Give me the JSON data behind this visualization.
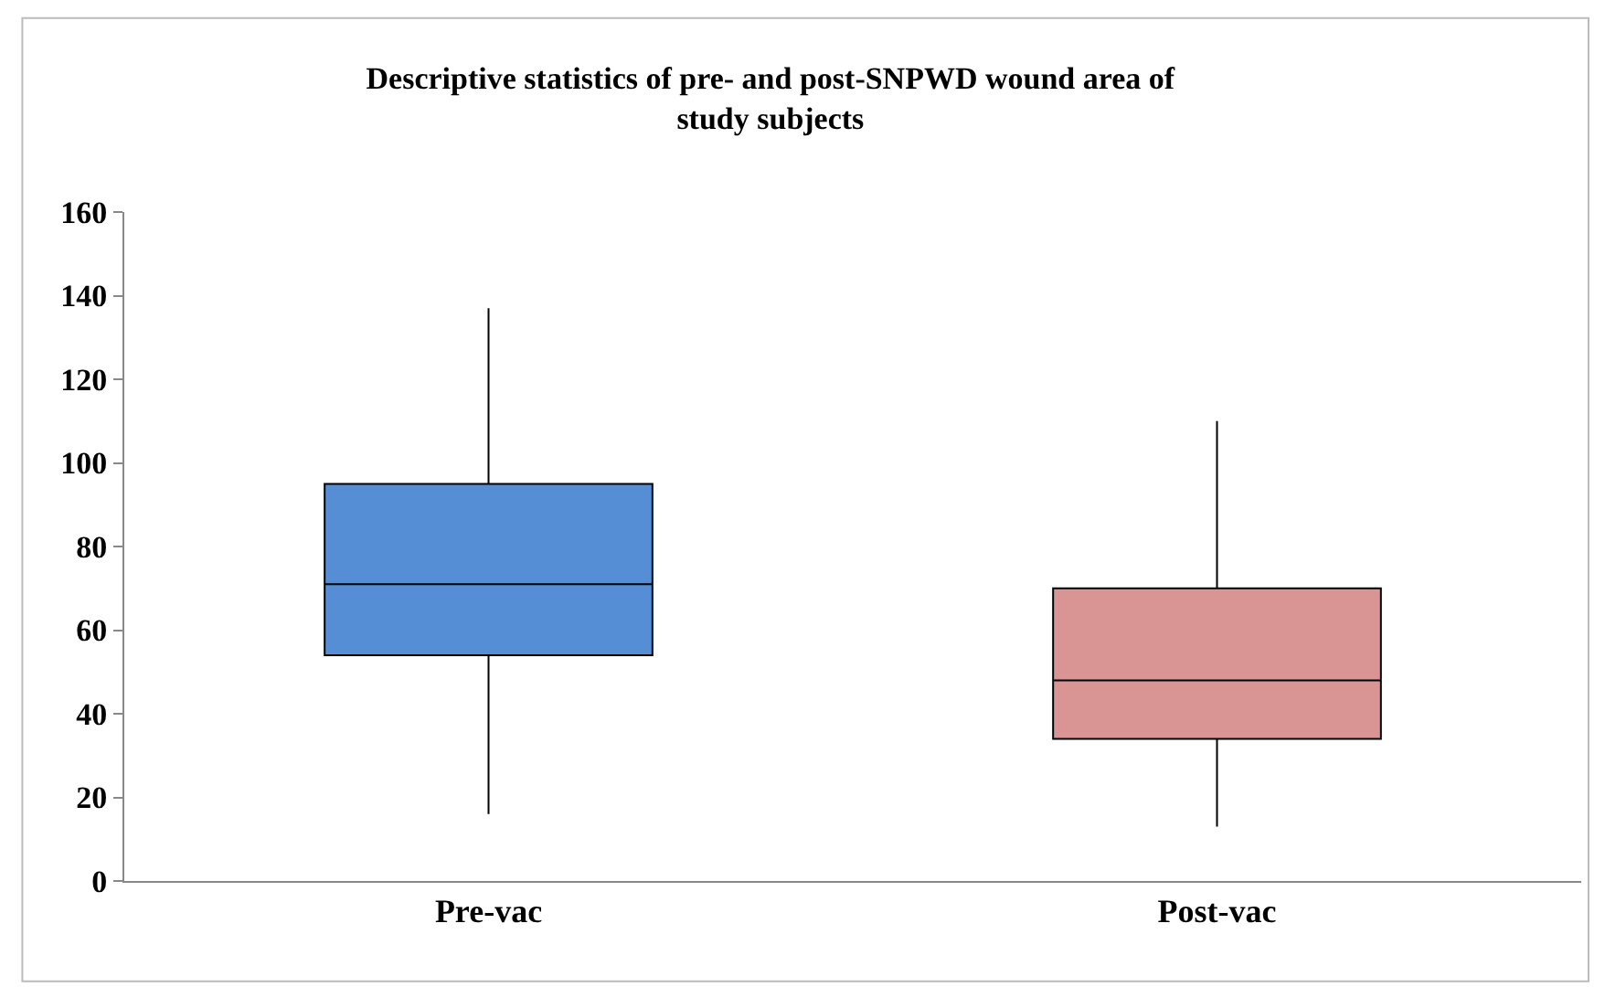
{
  "chart_data": {
    "type": "box",
    "title": "Descriptive statistics of pre- and post-SNPWD wound area of\nstudy subjects",
    "categories": [
      "Pre-vac",
      "Post-vac"
    ],
    "colors": [
      "#558ed5",
      "#d99594"
    ],
    "boxes": [
      {
        "low": 16,
        "q1": 54,
        "median": 71,
        "q3": 95,
        "high": 137
      },
      {
        "low": 13,
        "q1": 34,
        "median": 48,
        "q3": 70,
        "high": 110
      }
    ],
    "ylim": [
      0,
      160
    ],
    "yticks": [
      0,
      20,
      40,
      60,
      80,
      100,
      120,
      140,
      160
    ],
    "legend": false
  }
}
